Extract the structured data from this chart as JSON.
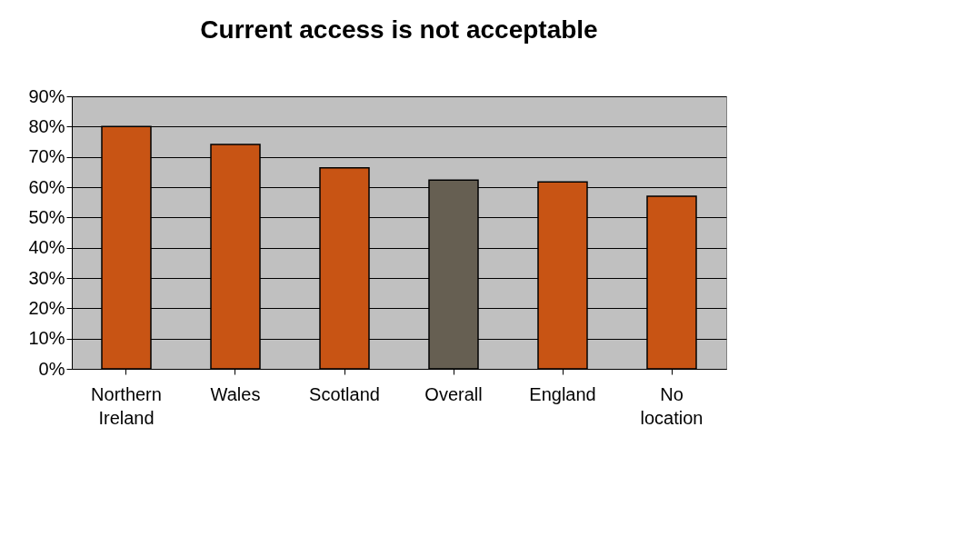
{
  "chart_data": {
    "type": "bar",
    "title": "Current access is not acceptable",
    "categories": [
      "Northern Ireland",
      "Wales",
      "Scotland",
      "Overall",
      "England",
      "No location"
    ],
    "values": [
      80.0,
      74.1,
      66.4,
      62.3,
      61.7,
      57.0
    ],
    "colors": [
      "#c85414",
      "#c85414",
      "#c85414",
      "#665f52",
      "#c85414",
      "#c85414"
    ],
    "ylim": [
      0,
      90
    ],
    "yticks": [
      {
        "value": 0,
        "label": "0%"
      },
      {
        "value": 10,
        "label": "10%"
      },
      {
        "value": 20,
        "label": "20%"
      },
      {
        "value": 30,
        "label": "30%"
      },
      {
        "value": 40,
        "label": "40%"
      },
      {
        "value": 50,
        "label": "50%"
      },
      {
        "value": 60,
        "label": "60%"
      },
      {
        "value": 70,
        "label": "70%"
      },
      {
        "value": 80,
        "label": "80%"
      },
      {
        "value": 90,
        "label": "90%"
      }
    ],
    "grid": "y"
  }
}
